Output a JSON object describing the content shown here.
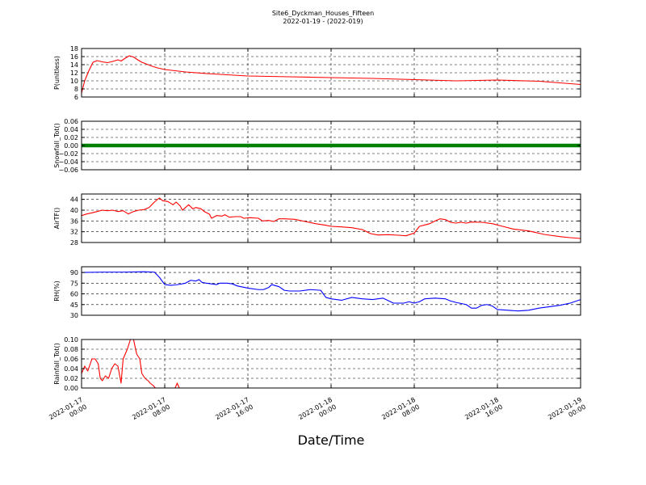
{
  "header": {
    "title": "Site6_Dyckman_Houses_Fifteen",
    "subtitle": "2022-01-19 - (2022-019)"
  },
  "chart_data": {
    "type": "line",
    "title": "Site6_Dyckman_Houses_Fifteen",
    "subtitle": "2022-01-19 - (2022-019)",
    "xlabel": "Date/Time",
    "x_ticks": [
      {
        "hour": 0,
        "line1": "2022-01-17",
        "line2": "00:00"
      },
      {
        "hour": 8,
        "line1": "2022-01-17",
        "line2": "08:00"
      },
      {
        "hour": 16,
        "line1": "2022-01-17",
        "line2": "16:00"
      },
      {
        "hour": 24,
        "line1": "2022-01-18",
        "line2": "00:00"
      },
      {
        "hour": 32,
        "line1": "2022-01-18",
        "line2": "08:00"
      },
      {
        "hour": 40,
        "line1": "2022-01-18",
        "line2": "16:00"
      },
      {
        "hour": 48,
        "line1": "2022-01-19",
        "line2": "00:00"
      }
    ],
    "xlim": [
      0,
      48
    ],
    "x_unit": "hours from 2022-01-17 00:00",
    "grid": true,
    "panels": [
      {
        "ylabel": "P(unitless)",
        "ylim": [
          6,
          18
        ],
        "yticks": [
          6,
          8,
          10,
          12,
          14,
          16,
          18
        ],
        "tick_labels": [
          "6",
          "8",
          "10",
          "12",
          "14",
          "16",
          "18"
        ],
        "color": "#ff0000",
        "mode": "line",
        "points": [
          [
            0,
            7
          ],
          [
            0.3,
            10
          ],
          [
            0.7,
            12.5
          ],
          [
            1.1,
            14.6
          ],
          [
            1.5,
            15
          ],
          [
            2,
            14.7
          ],
          [
            2.5,
            14.5
          ],
          [
            3,
            14.8
          ],
          [
            3.5,
            15.2
          ],
          [
            3.8,
            14.9
          ],
          [
            4.2,
            15.6
          ],
          [
            4.6,
            16.2
          ],
          [
            5,
            15.9
          ],
          [
            5.4,
            15.2
          ],
          [
            5.8,
            14.6
          ],
          [
            6.3,
            14.1
          ],
          [
            6.8,
            13.6
          ],
          [
            7.3,
            13.2
          ],
          [
            8,
            12.8
          ],
          [
            9,
            12.5
          ],
          [
            10,
            12.2
          ],
          [
            12,
            11.8
          ],
          [
            14,
            11.5
          ],
          [
            16,
            11.2
          ],
          [
            20,
            11
          ],
          [
            24,
            10.8
          ],
          [
            28,
            10.6
          ],
          [
            32,
            10.3
          ],
          [
            36,
            10
          ],
          [
            40,
            10.2
          ],
          [
            44,
            9.9
          ],
          [
            48,
            9.1
          ]
        ]
      },
      {
        "ylabel": "Snowfall_Tot()",
        "ylim": [
          -0.06,
          0.06
        ],
        "yticks": [
          -0.06,
          -0.04,
          -0.02,
          0,
          0.02,
          0.04,
          0.06
        ],
        "tick_labels": [
          "−0.06",
          "−0.04",
          "−0.02",
          "0.00",
          "0.02",
          "0.04",
          "0.06"
        ],
        "color": "#008000",
        "mode": "thick",
        "points": [
          [
            0,
            0
          ],
          [
            48,
            0
          ]
        ]
      },
      {
        "ylabel": "AirTF()",
        "ylim": [
          28,
          46
        ],
        "yticks": [
          28,
          32,
          36,
          40,
          44
        ],
        "tick_labels": [
          "28",
          "32",
          "36",
          "40",
          "44"
        ],
        "color": "#ff0000",
        "mode": "line",
        "points": [
          [
            0,
            38
          ],
          [
            0.5,
            38.6
          ],
          [
            1,
            39
          ],
          [
            1.5,
            39.5
          ],
          [
            2,
            40
          ],
          [
            2.5,
            39.8
          ],
          [
            3,
            40
          ],
          [
            3.5,
            39.5
          ],
          [
            4,
            39.8
          ],
          [
            4.5,
            38.6
          ],
          [
            5,
            39.5
          ],
          [
            5.5,
            40
          ],
          [
            6,
            40.2
          ],
          [
            6.5,
            41
          ],
          [
            7,
            43
          ],
          [
            7.3,
            44
          ],
          [
            7.5,
            44.5
          ],
          [
            7.8,
            43.5
          ],
          [
            8.3,
            43.2
          ],
          [
            8.8,
            42
          ],
          [
            9.1,
            43
          ],
          [
            9.5,
            41.5
          ],
          [
            9.7,
            40
          ],
          [
            10,
            41
          ],
          [
            10.3,
            42
          ],
          [
            10.7,
            40.5
          ],
          [
            11,
            41
          ],
          [
            11.5,
            40.5
          ],
          [
            11.8,
            39.5
          ],
          [
            12.3,
            38.5
          ],
          [
            12.5,
            37
          ],
          [
            13,
            38
          ],
          [
            13.5,
            37.8
          ],
          [
            13.8,
            38.3
          ],
          [
            14.2,
            37.4
          ],
          [
            14.8,
            37.6
          ],
          [
            15.3,
            37.6
          ],
          [
            15.6,
            37
          ],
          [
            16.2,
            37.2
          ],
          [
            17,
            37
          ],
          [
            17.4,
            36
          ],
          [
            18,
            36.2
          ],
          [
            18.5,
            35.8
          ],
          [
            19,
            36.8
          ],
          [
            19.5,
            36.8
          ],
          [
            20.5,
            36.6
          ],
          [
            21.5,
            35.8
          ],
          [
            22.5,
            35
          ],
          [
            23.5,
            34.4
          ],
          [
            24,
            34
          ],
          [
            25,
            33.8
          ],
          [
            26,
            33.5
          ],
          [
            27,
            32.8
          ],
          [
            27.8,
            31.3
          ],
          [
            28.5,
            30.8
          ],
          [
            29.5,
            30.9
          ],
          [
            30.5,
            30.7
          ],
          [
            31.2,
            30.5
          ],
          [
            32,
            31.5
          ],
          [
            32.5,
            34
          ],
          [
            33,
            34.5
          ],
          [
            33.5,
            35
          ],
          [
            34,
            36
          ],
          [
            34.5,
            36.8
          ],
          [
            35,
            36.5
          ],
          [
            35.5,
            35.5
          ],
          [
            36,
            35.2
          ],
          [
            36.5,
            35.5
          ],
          [
            37,
            35.2
          ],
          [
            37.5,
            35.6
          ],
          [
            38.5,
            35.5
          ],
          [
            39.5,
            35
          ],
          [
            40.5,
            34
          ],
          [
            41.5,
            33
          ],
          [
            43,
            32.3
          ],
          [
            44.5,
            31
          ],
          [
            46,
            30.2
          ],
          [
            47,
            29.8
          ],
          [
            48,
            29.5
          ]
        ]
      },
      {
        "ylabel": "RH(%)",
        "ylim": [
          30,
          98
        ],
        "yticks": [
          30,
          45,
          60,
          75,
          90
        ],
        "tick_labels": [
          "30",
          "45",
          "60",
          "75",
          "90"
        ],
        "color": "#0000ff",
        "mode": "line",
        "points": [
          [
            0,
            90
          ],
          [
            2,
            90.5
          ],
          [
            4,
            90.5
          ],
          [
            6,
            91
          ],
          [
            7,
            90.5
          ],
          [
            7.5,
            83
          ],
          [
            8,
            73
          ],
          [
            8.6,
            72
          ],
          [
            9,
            72.5
          ],
          [
            9.5,
            73.5
          ],
          [
            10,
            75
          ],
          [
            10.5,
            79
          ],
          [
            11,
            78
          ],
          [
            11.3,
            80
          ],
          [
            11.6,
            76
          ],
          [
            12,
            75
          ],
          [
            12.5,
            74
          ],
          [
            13,
            73
          ],
          [
            13.3,
            75
          ],
          [
            14,
            75
          ],
          [
            14.5,
            74
          ],
          [
            15,
            71
          ],
          [
            16,
            68
          ],
          [
            17,
            66
          ],
          [
            17.5,
            66
          ],
          [
            18,
            69
          ],
          [
            18.3,
            73
          ],
          [
            19,
            70
          ],
          [
            19.5,
            65
          ],
          [
            20,
            64
          ],
          [
            21,
            64
          ],
          [
            22,
            66
          ],
          [
            23,
            65
          ],
          [
            23.5,
            55
          ],
          [
            24,
            53
          ],
          [
            24.5,
            52
          ],
          [
            25,
            51
          ],
          [
            26,
            55
          ],
          [
            27,
            53
          ],
          [
            28,
            52
          ],
          [
            29,
            54
          ],
          [
            30,
            47
          ],
          [
            31,
            47
          ],
          [
            31.5,
            49
          ],
          [
            32,
            47
          ],
          [
            32.5,
            49
          ],
          [
            33,
            53
          ],
          [
            34,
            54
          ],
          [
            35,
            53
          ],
          [
            35.5,
            50
          ],
          [
            36,
            48
          ],
          [
            37,
            45
          ],
          [
            37.5,
            40
          ],
          [
            38,
            40
          ],
          [
            38.5,
            44
          ],
          [
            39,
            45
          ],
          [
            39.5,
            43
          ],
          [
            40,
            38
          ],
          [
            41,
            37
          ],
          [
            42,
            36
          ],
          [
            43,
            37
          ],
          [
            44,
            40
          ],
          [
            45,
            42
          ],
          [
            46,
            44
          ],
          [
            47,
            47
          ],
          [
            48,
            52
          ]
        ]
      },
      {
        "ylabel": "Rainfall_Tot()",
        "ylim": [
          0,
          0.1
        ],
        "yticks": [
          0,
          0.02,
          0.04,
          0.06,
          0.08,
          0.1
        ],
        "tick_labels": [
          "0.00",
          "0.02",
          "0.04",
          "0.06",
          "0.08",
          "0.10"
        ],
        "color": "#ff0000",
        "mode": "line",
        "points": [
          [
            0,
            0.03
          ],
          [
            0.3,
            0.045
          ],
          [
            0.6,
            0.035
          ],
          [
            1,
            0.06
          ],
          [
            1.3,
            0.06
          ],
          [
            1.6,
            0.05
          ],
          [
            1.8,
            0.02
          ],
          [
            2,
            0.015
          ],
          [
            2.3,
            0.025
          ],
          [
            2.6,
            0.02
          ],
          [
            2.9,
            0.04
          ],
          [
            3.2,
            0.05
          ],
          [
            3.5,
            0.045
          ],
          [
            3.8,
            0.01
          ],
          [
            4,
            0.06
          ],
          [
            4.4,
            0.08
          ],
          [
            4.7,
            0.1
          ],
          [
            5,
            0.1
          ],
          [
            5.3,
            0.07
          ],
          [
            5.6,
            0.06
          ],
          [
            5.8,
            0.03
          ],
          [
            6.1,
            0.02
          ],
          [
            6.4,
            0.015
          ],
          [
            6.6,
            0.01
          ],
          [
            6.9,
            0.005
          ],
          [
            7.1,
            0
          ],
          [
            9,
            0
          ],
          [
            9.2,
            0.01
          ],
          [
            9.4,
            0
          ],
          [
            48,
            0
          ]
        ]
      }
    ]
  }
}
